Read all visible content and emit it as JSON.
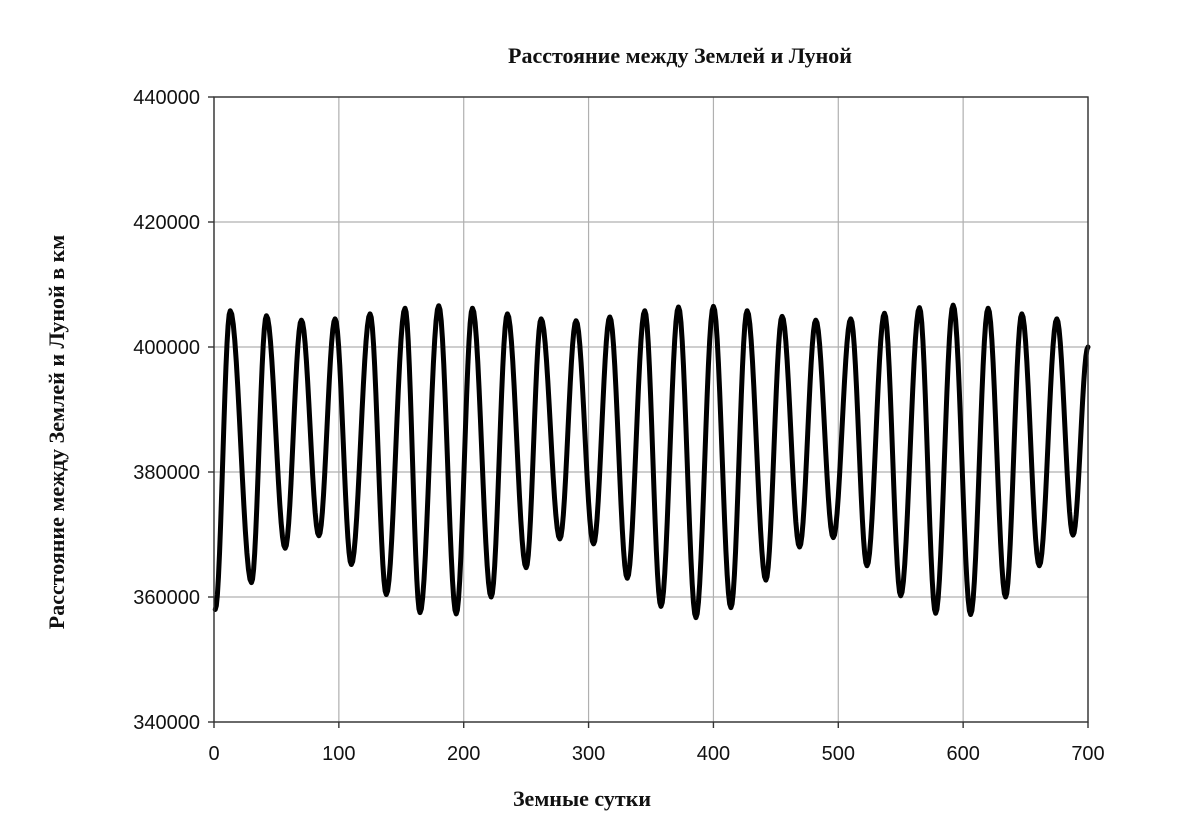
{
  "chart_data": {
    "type": "line",
    "title": "Расстояние между Землей и Луной",
    "xlabel": "Земные сутки",
    "ylabel": "Расстояние между Землей и Луной в км",
    "xlim": [
      0,
      700
    ],
    "ylim": [
      340000,
      440000
    ],
    "xticks": [
      "0",
      "100",
      "200",
      "300",
      "400",
      "500",
      "600",
      "700"
    ],
    "yticks": [
      "340000",
      "360000",
      "380000",
      "400000",
      "420000",
      "440000"
    ],
    "grid": true,
    "legend": "none",
    "series": [
      {
        "color": "#000000",
        "points": [
          [
            1,
            358000
          ],
          [
            13,
            405800
          ],
          [
            30,
            362300
          ],
          [
            42,
            405000
          ],
          [
            57,
            367800
          ],
          [
            70,
            404300
          ],
          [
            84,
            369800
          ],
          [
            97,
            404500
          ],
          [
            110,
            365200
          ],
          [
            125,
            405300
          ],
          [
            138,
            360400
          ],
          [
            153,
            406200
          ],
          [
            165,
            357500
          ],
          [
            180,
            406600
          ],
          [
            194,
            357300
          ],
          [
            207,
            406200
          ],
          [
            222,
            360000
          ],
          [
            235,
            405300
          ],
          [
            250,
            364700
          ],
          [
            262,
            404500
          ],
          [
            277,
            369300
          ],
          [
            290,
            404200
          ],
          [
            304,
            368500
          ],
          [
            317,
            404800
          ],
          [
            331,
            363000
          ],
          [
            345,
            405800
          ],
          [
            358,
            358500
          ],
          [
            372,
            406400
          ],
          [
            386,
            356700
          ],
          [
            400,
            406500
          ],
          [
            414,
            358300
          ],
          [
            427,
            405800
          ],
          [
            442,
            362700
          ],
          [
            455,
            404900
          ],
          [
            469,
            368000
          ],
          [
            482,
            404300
          ],
          [
            496,
            369500
          ],
          [
            510,
            404500
          ],
          [
            523,
            365000
          ],
          [
            537,
            405400
          ],
          [
            550,
            360200
          ],
          [
            565,
            406300
          ],
          [
            578,
            357400
          ],
          [
            592,
            406700
          ],
          [
            606,
            357200
          ],
          [
            620,
            406200
          ],
          [
            634,
            360000
          ],
          [
            647,
            405300
          ],
          [
            661,
            365000
          ],
          [
            675,
            404500
          ],
          [
            688,
            369900
          ],
          [
            700,
            400000
          ]
        ]
      }
    ]
  }
}
